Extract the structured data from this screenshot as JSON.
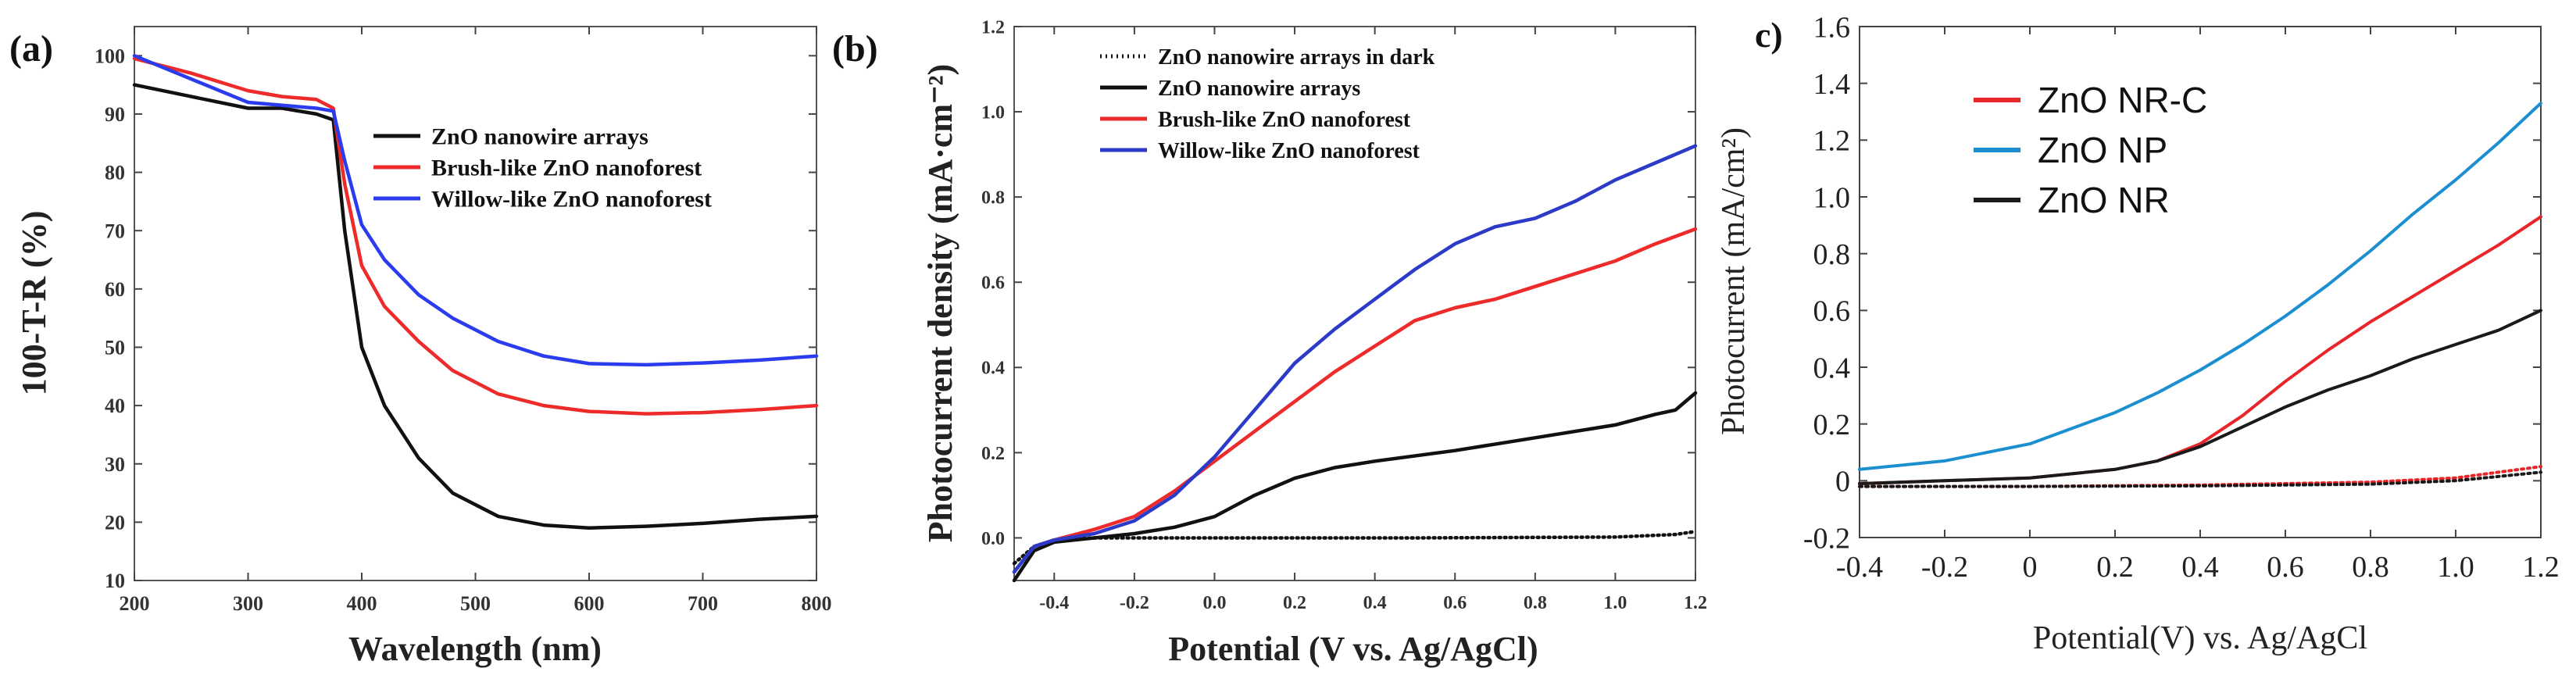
{
  "chart_data": [
    {
      "panel": "(a)",
      "type": "line",
      "title": "",
      "xlabel": "Wavelength (nm)",
      "ylabel": "100-T-R (%)",
      "xlim": [
        200,
        800
      ],
      "ylim": [
        10,
        105
      ],
      "xticks": [
        200,
        300,
        400,
        500,
        600,
        700,
        800
      ],
      "yticks": [
        10,
        20,
        30,
        40,
        50,
        60,
        70,
        80,
        90,
        100
      ],
      "grid": false,
      "legend_position": "center-right",
      "series": [
        {
          "name": "ZnO nanowire arrays",
          "color": "#111111",
          "dash": "",
          "x": [
            200,
            250,
            300,
            330,
            360,
            375,
            385,
            400,
            420,
            450,
            480,
            520,
            560,
            600,
            650,
            700,
            750,
            800
          ],
          "y": [
            95,
            93,
            91,
            91,
            90,
            89,
            70,
            50,
            40,
            31,
            25,
            21,
            19.5,
            19,
            19.3,
            19.8,
            20.5,
            21
          ]
        },
        {
          "name": "Brush-like ZnO nanoforest",
          "color": "#ee2b2b",
          "dash": "",
          "x": [
            200,
            250,
            300,
            330,
            360,
            375,
            385,
            400,
            420,
            450,
            480,
            520,
            560,
            600,
            650,
            700,
            750,
            800
          ],
          "y": [
            99.5,
            97,
            94,
            93,
            92.5,
            91,
            78,
            64,
            57,
            51,
            46,
            42,
            40,
            39,
            38.6,
            38.8,
            39.3,
            40
          ]
        },
        {
          "name": "Willow-like ZnO nanoforest",
          "color": "#2b3bee",
          "dash": "",
          "x": [
            200,
            250,
            300,
            330,
            360,
            375,
            385,
            400,
            420,
            450,
            480,
            520,
            560,
            600,
            650,
            700,
            750,
            800
          ],
          "y": [
            100,
            96,
            92,
            91.5,
            91,
            90.5,
            82,
            71,
            65,
            59,
            55,
            51,
            48.5,
            47.2,
            47,
            47.3,
            47.8,
            48.5
          ]
        }
      ]
    },
    {
      "panel": "(b)",
      "type": "line",
      "title": "",
      "xlabel": "Potential (V vs. Ag/AgCl)",
      "ylabel": "Photocurrent density (mA·cm⁻²)",
      "xlim": [
        -0.5,
        1.2
      ],
      "ylim": [
        -0.1,
        1.2
      ],
      "xticks": [
        -0.4,
        -0.2,
        0.0,
        0.2,
        0.4,
        0.6,
        0.8,
        1.0,
        1.2
      ],
      "xtick_labels": [
        "-0.4",
        "-0.2",
        "0.0",
        "0.2",
        "0.4",
        "0.6",
        "0.8",
        "1.0",
        "1.2"
      ],
      "yticks": [
        0.0,
        0.2,
        0.4,
        0.6,
        0.8,
        1.0,
        1.2
      ],
      "ytick_labels": [
        "0.0",
        "0.2",
        "0.4",
        "0.6",
        "0.8",
        "1.0",
        "1.2"
      ],
      "grid": false,
      "legend_position": "top-left",
      "series": [
        {
          "name": "ZnO nanowire arrays in dark",
          "color": "#111111",
          "dash": "2,5",
          "x": [
            -0.5,
            -0.45,
            -0.4,
            -0.3,
            0.0,
            0.5,
            1.0,
            1.15,
            1.2
          ],
          "y": [
            -0.06,
            -0.02,
            -0.005,
            0.0,
            0.0,
            0.0,
            0.002,
            0.008,
            0.015
          ]
        },
        {
          "name": "ZnO nanowire arrays",
          "color": "#111111",
          "dash": "",
          "x": [
            -0.5,
            -0.45,
            -0.4,
            -0.3,
            -0.2,
            -0.1,
            0.0,
            0.1,
            0.2,
            0.3,
            0.4,
            0.6,
            0.8,
            1.0,
            1.1,
            1.15,
            1.2
          ],
          "y": [
            -0.1,
            -0.03,
            -0.01,
            0.0,
            0.01,
            0.025,
            0.05,
            0.1,
            0.14,
            0.165,
            0.18,
            0.205,
            0.235,
            0.265,
            0.29,
            0.3,
            0.34
          ]
        },
        {
          "name": "Brush-like ZnO nanoforest",
          "color": "#ee2b2b",
          "dash": "",
          "x": [
            -0.5,
            -0.45,
            -0.4,
            -0.3,
            -0.2,
            -0.1,
            0.0,
            0.1,
            0.2,
            0.3,
            0.4,
            0.5,
            0.6,
            0.7,
            0.8,
            0.9,
            1.0,
            1.1,
            1.2
          ],
          "y": [
            -0.08,
            -0.02,
            -0.005,
            0.02,
            0.05,
            0.11,
            0.18,
            0.25,
            0.32,
            0.39,
            0.45,
            0.51,
            0.54,
            0.56,
            0.59,
            0.62,
            0.65,
            0.69,
            0.725
          ]
        },
        {
          "name": "Willow-like ZnO nanoforest",
          "color": "#2b3bc8",
          "dash": "",
          "x": [
            -0.5,
            -0.45,
            -0.4,
            -0.3,
            -0.2,
            -0.1,
            0.0,
            0.1,
            0.2,
            0.3,
            0.4,
            0.5,
            0.6,
            0.7,
            0.8,
            0.9,
            1.0,
            1.1,
            1.2
          ],
          "y": [
            -0.08,
            -0.02,
            -0.005,
            0.01,
            0.04,
            0.1,
            0.19,
            0.3,
            0.41,
            0.49,
            0.56,
            0.63,
            0.69,
            0.73,
            0.75,
            0.79,
            0.84,
            0.88,
            0.92
          ]
        }
      ]
    },
    {
      "panel": "c)",
      "type": "line",
      "title": "",
      "xlabel": "Potential(V) vs. Ag/AgCl",
      "ylabel": "Photocurrent (mA/cm²)",
      "xlim": [
        -0.4,
        1.2
      ],
      "ylim": [
        -0.2,
        1.6
      ],
      "xticks": [
        -0.4,
        -0.2,
        0.0,
        0.2,
        0.4,
        0.6,
        0.8,
        1.0,
        1.2
      ],
      "xtick_labels": [
        "-0.4",
        "-0.2",
        "0",
        "0.2",
        "0.4",
        "0.6",
        "0.8",
        "1.0",
        "1.2"
      ],
      "yticks": [
        -0.2,
        0.0,
        0.2,
        0.4,
        0.6,
        0.8,
        1.0,
        1.2,
        1.4,
        1.6
      ],
      "ytick_labels": [
        "-0.2",
        "0",
        "0.2",
        "0.4",
        "0.6",
        "0.8",
        "1.0",
        "1.2",
        "1.4",
        "1.6"
      ],
      "grid": false,
      "legend_position": "top-left",
      "series": [
        {
          "name": "ZnO NR-C",
          "color": "#e8262a",
          "dash": "",
          "x": [
            -0.4,
            -0.2,
            0.0,
            0.2,
            0.3,
            0.4,
            0.5,
            0.6,
            0.7,
            0.8,
            0.9,
            1.0,
            1.1,
            1.2
          ],
          "y": [
            -0.01,
            0.0,
            0.01,
            0.04,
            0.07,
            0.13,
            0.23,
            0.35,
            0.46,
            0.56,
            0.65,
            0.74,
            0.83,
            0.93
          ]
        },
        {
          "name": "ZnO NP",
          "color": "#1c8fd0",
          "dash": "",
          "x": [
            -0.4,
            -0.2,
            0.0,
            0.2,
            0.3,
            0.4,
            0.5,
            0.6,
            0.7,
            0.8,
            0.9,
            1.0,
            1.1,
            1.2
          ],
          "y": [
            0.04,
            0.07,
            0.13,
            0.24,
            0.31,
            0.39,
            0.48,
            0.58,
            0.69,
            0.81,
            0.94,
            1.06,
            1.19,
            1.33
          ]
        },
        {
          "name": "ZnO NR",
          "color": "#1a1a1a",
          "dash": "",
          "x": [
            -0.4,
            -0.2,
            0.0,
            0.2,
            0.3,
            0.4,
            0.5,
            0.6,
            0.7,
            0.8,
            0.9,
            1.0,
            1.1,
            1.2
          ],
          "y": [
            -0.01,
            0.0,
            0.01,
            0.04,
            0.07,
            0.12,
            0.19,
            0.26,
            0.32,
            0.37,
            0.43,
            0.48,
            0.53,
            0.6
          ]
        },
        {
          "name": "",
          "color": "#e8262a",
          "dash": "3,5",
          "legend": false,
          "x": [
            -0.4,
            0.0,
            0.4,
            0.8,
            1.0,
            1.1,
            1.2
          ],
          "y": [
            -0.02,
            -0.02,
            -0.015,
            -0.005,
            0.01,
            0.03,
            0.05
          ]
        },
        {
          "name": "",
          "color": "#1a1a1a",
          "dash": "3,5",
          "legend": false,
          "x": [
            -0.4,
            0.0,
            0.4,
            0.8,
            1.0,
            1.1,
            1.2
          ],
          "y": [
            -0.02,
            -0.02,
            -0.018,
            -0.012,
            0.0,
            0.015,
            0.03
          ]
        }
      ]
    }
  ]
}
